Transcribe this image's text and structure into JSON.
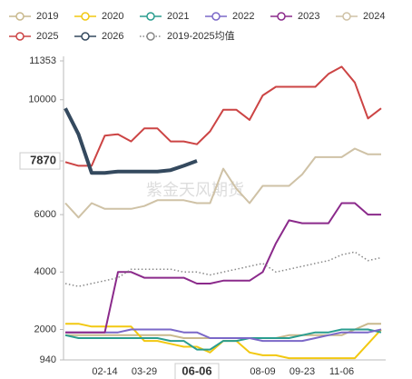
{
  "chart_data": {
    "type": "line",
    "watermark": "紫金天风期货",
    "categories": [
      null,
      null,
      null,
      "02-14",
      null,
      null,
      "03-29",
      null,
      null,
      null,
      "06-06",
      null,
      null,
      null,
      null,
      "08-09",
      null,
      null,
      "09-23",
      null,
      null,
      "11-06",
      null,
      null,
      null
    ],
    "ylim": [
      940,
      11353
    ],
    "yticks": [
      940,
      2000,
      4000,
      6000,
      7870,
      10000,
      11353
    ],
    "grid": false,
    "legend": "top",
    "series": [
      {
        "name": "2019",
        "color": "#c9b98d",
        "values": [
          1800,
          1800,
          1800,
          1800,
          1800,
          1800,
          1800,
          1800,
          1800,
          1700,
          1700,
          1700,
          1700,
          1700,
          1700,
          1700,
          1700,
          1800,
          1800,
          1800,
          1800,
          1800,
          2000,
          2200,
          2200
        ]
      },
      {
        "name": "2020",
        "color": "#f2c811",
        "values": [
          2200,
          2200,
          2100,
          2100,
          2100,
          2100,
          1600,
          1600,
          1500,
          1400,
          1400,
          1200,
          1600,
          1600,
          1200,
          1100,
          1100,
          1000,
          1000,
          1000,
          1000,
          1000,
          1000,
          1500,
          2000
        ]
      },
      {
        "name": "2021",
        "color": "#2a9d8f",
        "values": [
          1800,
          1700,
          1700,
          1700,
          1700,
          1700,
          1700,
          1700,
          1600,
          1600,
          1300,
          1300,
          1600,
          1600,
          1700,
          1700,
          1700,
          1700,
          1800,
          1900,
          1900,
          2000,
          2000,
          2000,
          1900
        ]
      },
      {
        "name": "2022",
        "color": "#7b68c8",
        "values": [
          1900,
          1900,
          1900,
          1900,
          1900,
          2000,
          2000,
          2000,
          2000,
          1900,
          1900,
          1700,
          1700,
          1700,
          1700,
          1600,
          1600,
          1600,
          1600,
          1700,
          1800,
          1900,
          1900,
          1900,
          2000
        ]
      },
      {
        "name": "2023",
        "color": "#8b2a8b",
        "values": [
          1900,
          1900,
          1900,
          1900,
          4000,
          4000,
          3800,
          3800,
          3800,
          3800,
          3600,
          3600,
          3700,
          3700,
          3700,
          4000,
          5000,
          5800,
          5700,
          5700,
          5700,
          6400,
          6400,
          6000,
          6000
        ]
      },
      {
        "name": "2024",
        "color": "#cfc2a6",
        "values": [
          6400,
          5900,
          6400,
          6200,
          6200,
          6200,
          6300,
          6500,
          6500,
          6500,
          6400,
          6400,
          7600,
          6900,
          6400,
          7000,
          7000,
          7000,
          7400,
          8000,
          8000,
          8000,
          8300,
          8100,
          8100
        ]
      },
      {
        "name": "2025",
        "color": "#cc4444",
        "values": [
          7830,
          7700,
          7700,
          8750,
          8800,
          8550,
          9000,
          9000,
          8550,
          8550,
          8450,
          8900,
          9650,
          9650,
          9300,
          10150,
          10450,
          10450,
          10450,
          10450,
          10900,
          11150,
          10600,
          9350,
          9700
        ]
      },
      {
        "name": "2026",
        "color": "#34495e",
        "values": [
          9700,
          8800,
          7450,
          7450,
          7500,
          7500,
          7500,
          7500,
          7550,
          7700,
          7870,
          null,
          null,
          null,
          null,
          null,
          null,
          null,
          null,
          null,
          null,
          null,
          null,
          null,
          null
        ]
      },
      {
        "name": "2019-2025均值",
        "color": "#888888",
        "style": "dotted",
        "values": [
          3600,
          3500,
          3600,
          3700,
          3800,
          4100,
          4100,
          4100,
          4100,
          4000,
          4000,
          3900,
          4000,
          4100,
          4200,
          4300,
          4000,
          4100,
          4200,
          4300,
          4400,
          4600,
          4700,
          4400,
          4500
        ]
      }
    ]
  }
}
